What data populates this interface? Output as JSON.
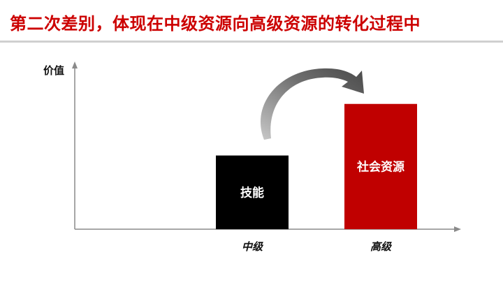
{
  "title": "第二次差别，体现在中级资源向高级资源的转化过程中",
  "colors": {
    "title": "#cc0000",
    "mid_bar": "#000000",
    "high_bar": "#c00000",
    "arrow": "#6e6e6e",
    "axis": "#8a8a8a"
  },
  "chart_data": {
    "type": "bar",
    "ylabel": "价值",
    "categories": [
      "中级",
      "高级"
    ],
    "bars": [
      {
        "category": "中级",
        "label": "技能",
        "value": 1.0,
        "color": "#000000"
      },
      {
        "category": "高级",
        "label": "社会资源",
        "value": 1.7,
        "color": "#c00000"
      }
    ],
    "ylim": [
      0,
      2.2
    ],
    "annotation": "curved arrow from 中级 bar to 高级 bar"
  }
}
